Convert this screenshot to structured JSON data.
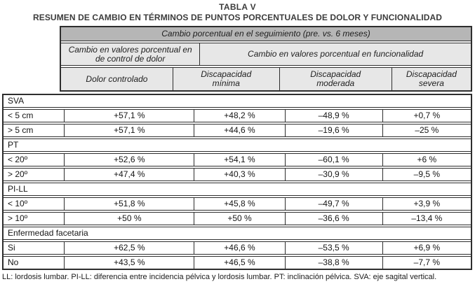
{
  "title": "TABLA V",
  "subtitle": "RESUMEN DE CAMBIO EN TÉRMINOS DE PUNTOS PORCENTUALES DE DOLOR Y FUNCIONALIDAD",
  "colors": {
    "header_top_bg": "#b6b6b6",
    "header_sub_bg": "#e7e7e7",
    "border": "#2e2e2e",
    "text": "#1a1a1a"
  },
  "header": {
    "top": "Cambio porcentual en el seguimiento (pre. vs. 6 meses)",
    "group_pain": "Cambio en valores porcentual en de control de dolor",
    "group_function": "Cambio en valores porcentual en  funcionalidad",
    "columns": [
      "Dolor controlado",
      "Discapacidad mínima",
      "Discapacidad moderada",
      "Discapacidad severa"
    ]
  },
  "sections": [
    {
      "label": "SVA",
      "rows": [
        {
          "label": "< 5 cm",
          "values": [
            "+57,1 %",
            "+48,2 %",
            "–48,9 %",
            "+0,7 %"
          ]
        },
        {
          "label": "> 5 cm",
          "values": [
            "+57,1 %",
            "+44,6 %",
            "–19,6 %",
            "–25 %"
          ]
        }
      ]
    },
    {
      "label": "PT",
      "rows": [
        {
          "label": "< 20º",
          "values": [
            "+52,6 %",
            "+54,1 %",
            "–60,1 %",
            "+6 %"
          ]
        },
        {
          "label": "> 20º",
          "values": [
            "+47,4 %",
            "+40,3 %",
            "–30,9 %",
            "–9,5 %"
          ]
        }
      ]
    },
    {
      "label": "PI-LL",
      "rows": [
        {
          "label": "< 10º",
          "values": [
            "+51,8 %",
            "+45,8 %",
            "–49,7 %",
            "+3,9 %"
          ]
        },
        {
          "label": "> 10º",
          "values": [
            "+50 %",
            "+50 %",
            "–36,6 %",
            "–13,4 %"
          ]
        }
      ]
    },
    {
      "label": "Enfermedad facetaria",
      "rows": [
        {
          "label": "Si",
          "values": [
            "+62,5 %",
            "+46,6 %",
            "–53,5 %",
            "+6,9 %"
          ]
        },
        {
          "label": "No",
          "values": [
            "+43,5 %",
            "+46,5 %",
            "–38,8 %",
            "–7,7 %"
          ]
        }
      ]
    }
  ],
  "footnote": "LL: lordosis lumbar. PI-LL: diferencia entre incidencia pélvica y lordosis lumbar. PT: inclinación pélvica. SVA: eje sagital vertical."
}
